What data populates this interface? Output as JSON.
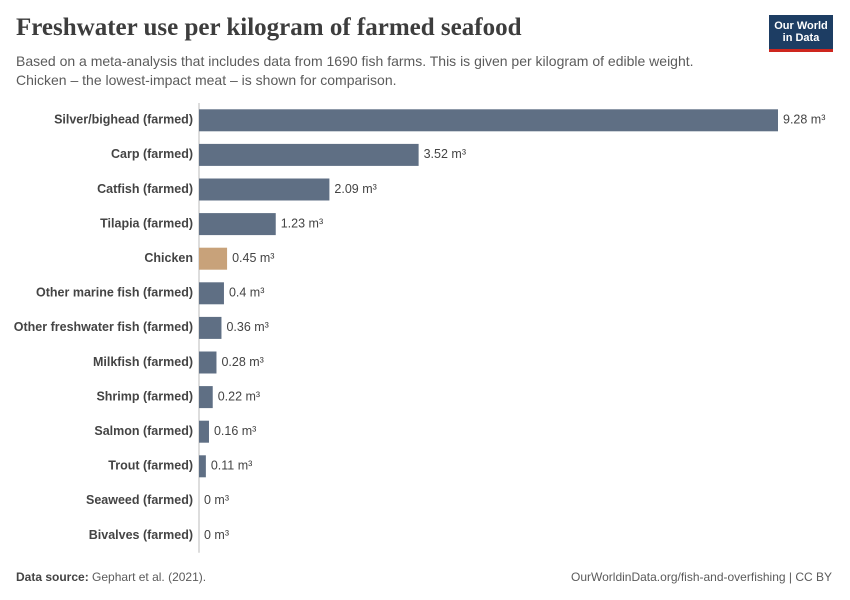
{
  "chart_data": {
    "type": "bar",
    "orientation": "horizontal",
    "title": "Freshwater use per kilogram of farmed seafood",
    "subtitle": "Based on a meta-analysis that includes data from 1690 fish farms. This is given per kilogram of edible weight. Chicken – the lowest-impact meat – is shown for comparison.",
    "logo": "Our World in Data",
    "source_label": "Data source:",
    "source": "Gephart et al. (2021).",
    "footer_right": "OurWorldinData.org/fish-and-overfishing | CC BY",
    "categories": [
      "Silver/bighead (farmed)",
      "Carp (farmed)",
      "Catfish (farmed)",
      "Tilapia (farmed)",
      "Chicken",
      "Other marine fish (farmed)",
      "Other freshwater fish (farmed)",
      "Milkfish (farmed)",
      "Shrimp (farmed)",
      "Salmon (farmed)",
      "Trout (farmed)",
      "Seaweed (farmed)",
      "Bivalves (farmed)"
    ],
    "values": [
      9.28,
      3.52,
      2.09,
      1.23,
      0.45,
      0.4,
      0.36,
      0.28,
      0.22,
      0.16,
      0.11,
      0,
      0
    ],
    "value_labels": [
      "9.28 m³",
      "3.52 m³",
      "2.09 m³",
      "1.23 m³",
      "0.45 m³",
      "0.4 m³",
      "0.36 m³",
      "0.28 m³",
      "0.22 m³",
      "0.16 m³",
      "0.11 m³",
      "0 m³",
      "0 m³"
    ],
    "colors": [
      "#5f6f84",
      "#5f6f84",
      "#5f6f84",
      "#5f6f84",
      "#c8a27a",
      "#5f6f84",
      "#5f6f84",
      "#5f6f84",
      "#5f6f84",
      "#5f6f84",
      "#5f6f84",
      "#5f6f84",
      "#5f6f84"
    ]
  }
}
